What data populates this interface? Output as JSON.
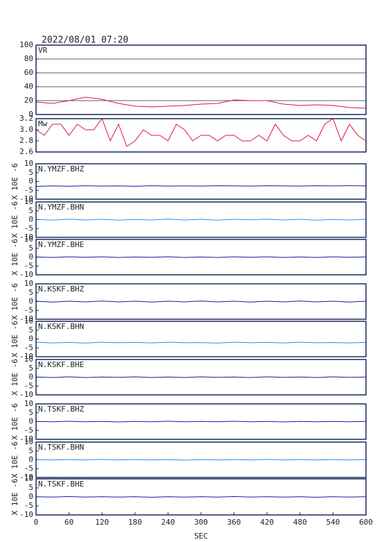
{
  "chart_data": [
    {
      "type": "line",
      "title": "2022/08/01 07:20",
      "xlim": [
        0,
        600
      ],
      "ylim": [
        0,
        100
      ],
      "yticks": [
        0,
        20,
        40,
        60,
        80,
        100
      ],
      "grid": true,
      "x": [
        0,
        30,
        60,
        90,
        120,
        150,
        180,
        210,
        240,
        270,
        300,
        330,
        360,
        390,
        420,
        450,
        480,
        510,
        540,
        570,
        600
      ],
      "series": [
        {
          "name": "VR",
          "color": "#dc143c",
          "values": [
            18,
            16,
            20,
            25,
            22,
            16,
            12,
            11,
            12,
            13,
            15,
            16,
            21,
            20,
            20,
            15,
            13,
            14,
            13,
            10,
            9
          ]
        }
      ]
    },
    {
      "type": "line",
      "xlim": [
        0,
        600
      ],
      "ylim": [
        2.6,
        3.2
      ],
      "yticks": [
        2.6,
        2.8,
        {
          "value": 3,
          "label": "3.0"
        },
        3.2
      ],
      "grid": false,
      "x": [
        0,
        15,
        30,
        45,
        60,
        75,
        90,
        105,
        120,
        135,
        150,
        165,
        180,
        195,
        210,
        225,
        240,
        255,
        270,
        285,
        300,
        315,
        330,
        345,
        360,
        375,
        390,
        405,
        420,
        435,
        450,
        465,
        480,
        495,
        510,
        525,
        540,
        555,
        570,
        585,
        600
      ],
      "series": [
        {
          "name": "Mw",
          "color": "#dc143c",
          "values": [
            3.0,
            2.9,
            3.1,
            3.1,
            2.9,
            3.1,
            3.0,
            3.0,
            3.2,
            2.8,
            3.1,
            2.7,
            2.8,
            3.0,
            2.9,
            2.9,
            2.8,
            3.1,
            3.0,
            2.8,
            2.9,
            2.9,
            2.8,
            2.9,
            2.9,
            2.8,
            2.8,
            2.9,
            2.8,
            3.1,
            2.9,
            2.8,
            2.8,
            2.9,
            2.8,
            3.1,
            3.2,
            2.8,
            3.1,
            2.9,
            2.8
          ]
        }
      ]
    },
    {
      "type": "line",
      "ylabel": "X 10E -6",
      "xlim": [
        0,
        600
      ],
      "ylim": [
        -10,
        10
      ],
      "yticks": [
        -10,
        -5,
        0,
        5,
        10
      ],
      "x": [
        0,
        30,
        60,
        90,
        120,
        150,
        180,
        210,
        240,
        270,
        300,
        330,
        360,
        390,
        420,
        450,
        480,
        510,
        540,
        570,
        600
      ],
      "series": [
        {
          "name": "N.YMZF.BHZ",
          "color": "#1a1aa0",
          "values": [
            -2.8,
            -2.5,
            -2.7,
            -2.4,
            -2.6,
            -2.5,
            -2.7,
            -2.4,
            -2.6,
            -2.5,
            -2.6,
            -2.4,
            -2.5,
            -2.6,
            -2.4,
            -2.5,
            -2.6,
            -2.4,
            -2.5,
            -2.4,
            -2.5
          ]
        }
      ]
    },
    {
      "type": "line",
      "ylabel": "X 10E -6",
      "xlim": [
        0,
        600
      ],
      "ylim": [
        -10,
        10
      ],
      "yticks": [
        -10,
        -5,
        0,
        5,
        10
      ],
      "x": [
        0,
        30,
        60,
        90,
        120,
        150,
        180,
        210,
        240,
        270,
        300,
        330,
        360,
        390,
        420,
        450,
        480,
        510,
        540,
        570,
        600
      ],
      "series": [
        {
          "name": "N.YMZF.BHN",
          "color": "#1e90ff",
          "values": [
            0.2,
            -0.3,
            0.3,
            -0.2,
            0.2,
            -0.3,
            0.1,
            -0.2,
            0.3,
            -0.2,
            0.2,
            -0.3,
            0.2,
            -0.1,
            0.3,
            -0.2,
            0.2,
            -0.3,
            0.1,
            -0.2,
            0.2
          ]
        }
      ]
    },
    {
      "type": "line",
      "ylabel": "X 10E -6",
      "xlim": [
        0,
        600
      ],
      "ylim": [
        -10,
        10
      ],
      "yticks": [
        -10,
        -5,
        0,
        5,
        10
      ],
      "x": [
        0,
        30,
        60,
        90,
        120,
        150,
        180,
        210,
        240,
        270,
        300,
        330,
        360,
        390,
        420,
        450,
        480,
        510,
        540,
        570,
        600
      ],
      "series": [
        {
          "name": "N.YMZF.BHE",
          "color": "#1a1aa0",
          "values": [
            0.1,
            -0.2,
            0.2,
            -0.1,
            0.2,
            -0.2,
            0.1,
            -0.1,
            0.2,
            -0.2,
            0.1,
            -0.2,
            0.2,
            -0.1,
            0.2,
            -0.2,
            0.1,
            -0.2,
            0.2,
            -0.1,
            0.1
          ]
        }
      ]
    },
    {
      "type": "line",
      "ylabel": "X 10E -6",
      "xlim": [
        0,
        600
      ],
      "ylim": [
        -10,
        10
      ],
      "yticks": [
        -10,
        -5,
        0,
        5,
        10
      ],
      "x": [
        0,
        30,
        60,
        90,
        120,
        150,
        180,
        210,
        240,
        270,
        300,
        330,
        360,
        390,
        420,
        450,
        480,
        510,
        540,
        570,
        600
      ],
      "series": [
        {
          "name": "N.KSKF.BHZ",
          "color": "#1a1aa0",
          "values": [
            0.2,
            -0.3,
            0.2,
            -0.2,
            0.3,
            -0.2,
            0.2,
            -0.3,
            0.2,
            -0.2,
            0.3,
            -0.2,
            0.2,
            -0.3,
            0.2,
            -0.2,
            0.3,
            -0.2,
            0.2,
            -0.3,
            0.2
          ]
        }
      ]
    },
    {
      "type": "line",
      "ylabel": "X 10E -6",
      "xlim": [
        0,
        600
      ],
      "ylim": [
        -10,
        10
      ],
      "yticks": [
        -10,
        -5,
        0,
        5,
        10
      ],
      "x": [
        0,
        30,
        60,
        90,
        120,
        150,
        180,
        210,
        240,
        270,
        300,
        330,
        360,
        390,
        420,
        450,
        480,
        510,
        540,
        570,
        600
      ],
      "series": [
        {
          "name": "N.KSKF.BHN",
          "color": "#1e90ff",
          "values": [
            -1.8,
            -2.2,
            -1.9,
            -2.3,
            -1.8,
            -2.1,
            -1.9,
            -2.2,
            -1.8,
            -2.1,
            -2.0,
            -2.3,
            -1.8,
            -2.1,
            -1.9,
            -2.2,
            -1.8,
            -2.1,
            -2.0,
            -2.2,
            -1.9
          ]
        }
      ]
    },
    {
      "type": "line",
      "ylabel": "X 10E -6",
      "xlim": [
        0,
        600
      ],
      "ylim": [
        -10,
        10
      ],
      "yticks": [
        -10,
        -5,
        0,
        5,
        10
      ],
      "x": [
        0,
        30,
        60,
        90,
        120,
        150,
        180,
        210,
        240,
        270,
        300,
        330,
        360,
        390,
        420,
        450,
        480,
        510,
        540,
        570,
        600
      ],
      "series": [
        {
          "name": "N.KSKF.BHE",
          "color": "#1a1aa0",
          "values": [
            0.1,
            -0.2,
            0.2,
            -0.2,
            0.1,
            -0.1,
            0.2,
            -0.2,
            0.1,
            -0.2,
            0.2,
            -0.1,
            0.1,
            -0.2,
            0.2,
            -0.1,
            0.1,
            -0.2,
            0.2,
            -0.1,
            0.1
          ]
        }
      ]
    },
    {
      "type": "line",
      "ylabel": "X 10E -6",
      "xlim": [
        0,
        600
      ],
      "ylim": [
        -10,
        10
      ],
      "yticks": [
        -10,
        -5,
        0,
        5,
        10
      ],
      "x": [
        0,
        30,
        60,
        90,
        120,
        150,
        180,
        210,
        240,
        270,
        300,
        330,
        360,
        390,
        420,
        450,
        480,
        510,
        540,
        570,
        600
      ],
      "series": [
        {
          "name": "N.TSKF.BHZ",
          "color": "#1a1aa0",
          "values": [
            0.1,
            -0.1,
            0.2,
            -0.1,
            0.1,
            -0.2,
            0.1,
            -0.1,
            0.2,
            -0.1,
            0.1,
            -0.1,
            0.2,
            -0.1,
            0.1,
            -0.2,
            0.1,
            -0.1,
            0.1,
            -0.1,
            0.1
          ]
        }
      ]
    },
    {
      "type": "line",
      "ylabel": "X 10E -6",
      "xlim": [
        0,
        600
      ],
      "ylim": [
        -10,
        10
      ],
      "yticks": [
        -10,
        -5,
        0,
        5,
        10
      ],
      "x": [
        0,
        30,
        60,
        90,
        120,
        150,
        180,
        210,
        240,
        270,
        300,
        330,
        360,
        390,
        420,
        450,
        480,
        510,
        540,
        570,
        600
      ],
      "series": [
        {
          "name": "N.TSKF.BHN",
          "color": "#1e90ff",
          "values": [
            0.1,
            -0.1,
            0.1,
            -0.1,
            0.2,
            -0.1,
            0.1,
            -0.1,
            0.1,
            -0.2,
            0.1,
            -0.1,
            0.1,
            -0.1,
            0.2,
            -0.1,
            0.1,
            -0.1,
            0.1,
            -0.1,
            0.1
          ]
        }
      ]
    },
    {
      "type": "line",
      "ylabel": "X 10E -6",
      "xlim": [
        0,
        600
      ],
      "ylim": [
        -10,
        10
      ],
      "yticks": [
        -10,
        -5,
        0,
        5,
        10
      ],
      "x": [
        0,
        30,
        60,
        90,
        120,
        150,
        180,
        210,
        240,
        270,
        300,
        330,
        360,
        390,
        420,
        450,
        480,
        510,
        540,
        570,
        600
      ],
      "xticks": [
        0,
        60,
        120,
        180,
        240,
        300,
        360,
        420,
        480,
        540,
        600
      ],
      "xlabel": "SEC",
      "series": [
        {
          "name": "N.TSKF.BHE",
          "color": "#1a1aa0",
          "values": [
            0.1,
            -0.1,
            0.2,
            -0.1,
            0.1,
            -0.1,
            0.1,
            -0.2,
            0.1,
            -0.1,
            0.1,
            -0.1,
            0.2,
            -0.1,
            0.1,
            -0.1,
            0.1,
            -0.2,
            0.1,
            -0.1,
            0.1
          ]
        }
      ]
    }
  ]
}
